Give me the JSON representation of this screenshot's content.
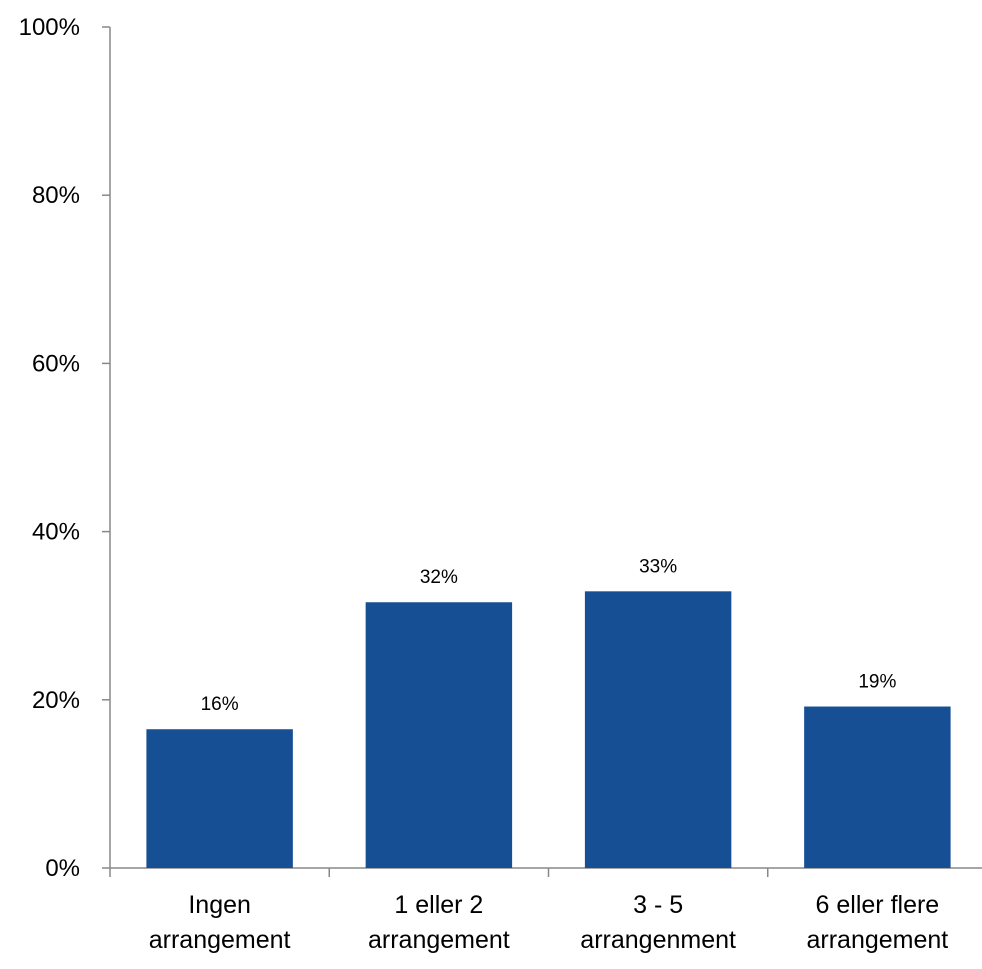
{
  "chart_data": {
    "type": "bar",
    "categories": [
      [
        "Ingen",
        "arrangement"
      ],
      [
        "1 eller 2",
        "arrangement"
      ],
      [
        "3 - 5",
        "arrangenment"
      ],
      [
        "6 eller flere",
        "arrangement"
      ]
    ],
    "values": [
      16.5,
      31.6,
      32.9,
      19.2
    ],
    "data_labels": [
      "16%",
      "32%",
      "33%",
      "19%"
    ],
    "y_ticks": [
      {
        "value": 0,
        "label": "0%"
      },
      {
        "value": 20,
        "label": "20%"
      },
      {
        "value": 40,
        "label": "40%"
      },
      {
        "value": 60,
        "label": "60%"
      },
      {
        "value": 80,
        "label": "80%"
      },
      {
        "value": 100,
        "label": "100%"
      }
    ],
    "ylim": [
      0,
      100
    ],
    "title": "",
    "xlabel": "",
    "ylabel": "",
    "grid": false,
    "legend": "none",
    "bar_color": "#174F95",
    "axis_color": "#888888"
  }
}
